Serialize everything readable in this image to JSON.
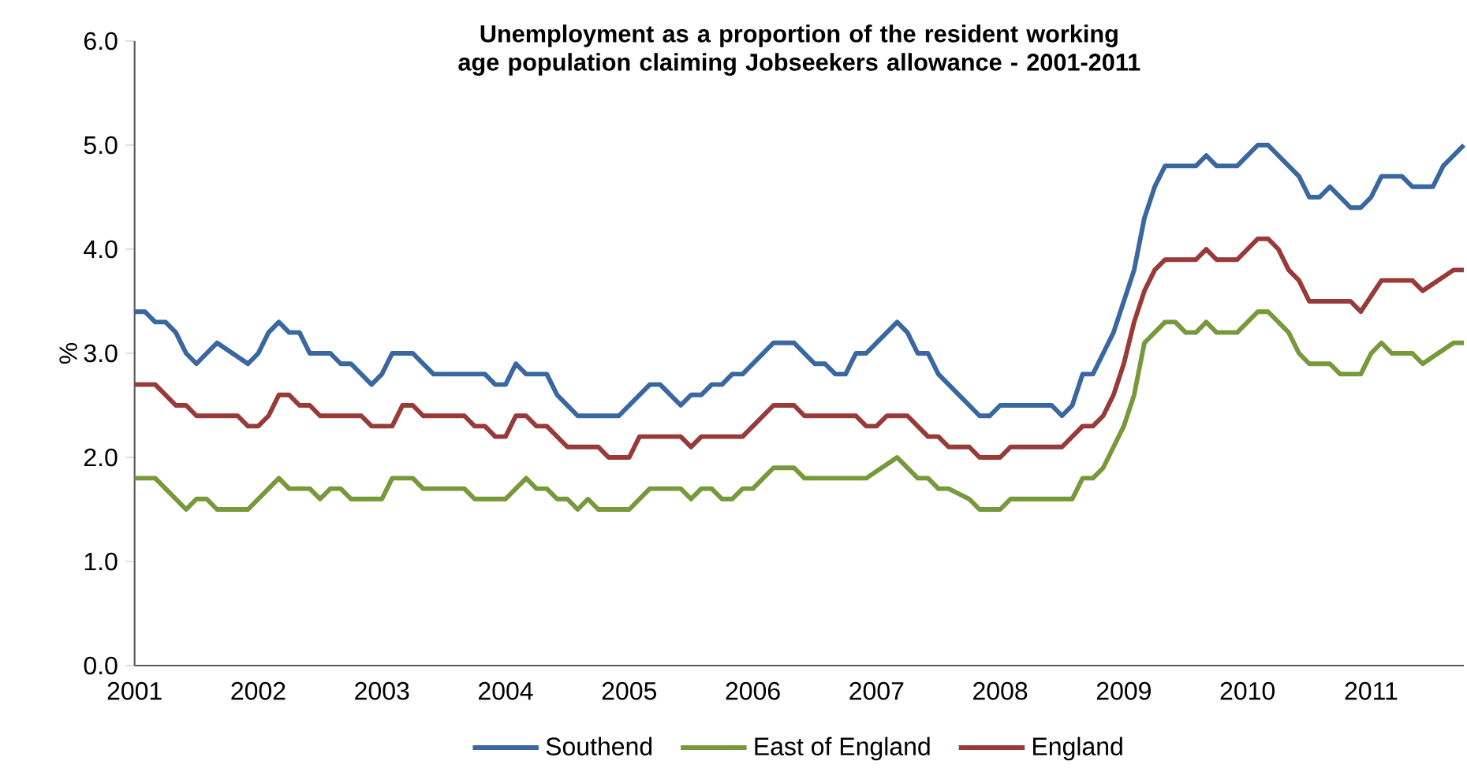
{
  "chart_data": {
    "type": "line",
    "title": "Unemployment as a proportion of the resident working age population claiming   Jobseekers allowance - 2001-2011",
    "ylabel": "%",
    "xlim": [
      "2001-01",
      "2011-10"
    ],
    "ylim": [
      0,
      6
    ],
    "xticks": [
      "2001",
      "2002",
      "2003",
      "2004",
      "2005",
      "2006",
      "2007",
      "2008",
      "2009",
      "2010",
      "2011"
    ],
    "yticks": [
      {
        "value": 0,
        "label": "0.0"
      },
      {
        "value": 1,
        "label": "1.0"
      },
      {
        "value": 2,
        "label": "2.0"
      },
      {
        "value": 3,
        "label": "3.0"
      },
      {
        "value": 4,
        "label": "4.0"
      },
      {
        "value": 5,
        "label": "5.0"
      },
      {
        "value": 6,
        "label": "6.0"
      }
    ],
    "legend": "bottom",
    "marker": "none",
    "line_style": "solid",
    "series": [
      {
        "name": "Southend",
        "color": "#3a67a0",
        "x": [
          "2001-01",
          "2001-02",
          "2001-03",
          "2001-04",
          "2001-05",
          "2001-06",
          "2001-07",
          "2001-09",
          "2001-12",
          "2002-01",
          "2002-02",
          "2002-03",
          "2002-04",
          "2002-05",
          "2002-06",
          "2002-08",
          "2002-09",
          "2002-10",
          "2002-12",
          "2003-01",
          "2003-02",
          "2003-04",
          "2003-06",
          "2003-11",
          "2003-12",
          "2004-01",
          "2004-02",
          "2004-03",
          "2004-05",
          "2004-06",
          "2004-08",
          "2004-12",
          "2005-03",
          "2005-04",
          "2005-06",
          "2005-07",
          "2005-08",
          "2005-09",
          "2005-10",
          "2005-11",
          "2005-12",
          "2006-03",
          "2006-05",
          "2006-07",
          "2006-08",
          "2006-09",
          "2006-10",
          "2006-11",
          "2006-12",
          "2007-03",
          "2007-04",
          "2007-05",
          "2007-06",
          "2007-07",
          "2007-11",
          "2007-12",
          "2008-01",
          "2008-06",
          "2008-07",
          "2008-08",
          "2008-09",
          "2008-10",
          "2008-11",
          "2008-12",
          "2009-01",
          "2009-02",
          "2009-03",
          "2009-04",
          "2009-05",
          "2009-08",
          "2009-09",
          "2009-10",
          "2009-12",
          "2010-02",
          "2010-03",
          "2010-06",
          "2010-07",
          "2010-08",
          "2010-09",
          "2010-11",
          "2010-12",
          "2011-01",
          "2011-02",
          "2011-04",
          "2011-05",
          "2011-07",
          "2011-08",
          "2011-10"
        ],
        "values": [
          3.4,
          3.4,
          3.3,
          3.3,
          3.2,
          3.0,
          2.9,
          3.1,
          2.9,
          3.0,
          3.2,
          3.3,
          3.2,
          3.2,
          3.0,
          3.0,
          2.9,
          2.9,
          2.7,
          2.8,
          3.0,
          3.0,
          2.8,
          2.8,
          2.7,
          2.7,
          2.9,
          2.8,
          2.8,
          2.6,
          2.4,
          2.4,
          2.7,
          2.7,
          2.5,
          2.6,
          2.6,
          2.7,
          2.7,
          2.8,
          2.8,
          3.1,
          3.1,
          2.9,
          2.9,
          2.8,
          2.8,
          3.0,
          3.0,
          3.3,
          3.2,
          3.0,
          3.0,
          2.8,
          2.4,
          2.4,
          2.5,
          2.5,
          2.4,
          2.5,
          2.8,
          2.8,
          3.0,
          3.2,
          3.5,
          3.8,
          4.3,
          4.6,
          4.8,
          4.8,
          4.9,
          4.8,
          4.8,
          5.0,
          5.0,
          4.7,
          4.5,
          4.5,
          4.6,
          4.4,
          4.4,
          4.5,
          4.7,
          4.7,
          4.6,
          4.6,
          4.8,
          5.0
        ]
      },
      {
        "name": "East of England",
        "color": "#77993b",
        "x": [
          "2001-01",
          "2001-03",
          "2001-06",
          "2001-07",
          "2001-08",
          "2001-09",
          "2001-12",
          "2002-03",
          "2002-04",
          "2002-06",
          "2002-07",
          "2002-08",
          "2002-09",
          "2002-10",
          "2003-01",
          "2003-02",
          "2003-04",
          "2003-05",
          "2003-09",
          "2003-10",
          "2004-01",
          "2004-03",
          "2004-04",
          "2004-05",
          "2004-06",
          "2004-07",
          "2004-08",
          "2004-09",
          "2004-10",
          "2005-01",
          "2005-03",
          "2005-06",
          "2005-07",
          "2005-08",
          "2005-09",
          "2005-10",
          "2005-11",
          "2005-12",
          "2006-01",
          "2006-03",
          "2006-05",
          "2006-06",
          "2006-12",
          "2007-03",
          "2007-05",
          "2007-06",
          "2007-07",
          "2007-08",
          "2007-10",
          "2007-11",
          "2008-01",
          "2008-02",
          "2008-08",
          "2008-09",
          "2008-10",
          "2008-11",
          "2008-12",
          "2009-01",
          "2009-02",
          "2009-03",
          "2009-05",
          "2009-06",
          "2009-07",
          "2009-08",
          "2009-09",
          "2009-10",
          "2009-12",
          "2010-02",
          "2010-03",
          "2010-05",
          "2010-06",
          "2010-07",
          "2010-09",
          "2010-10",
          "2010-12",
          "2011-01",
          "2011-02",
          "2011-03",
          "2011-05",
          "2011-06",
          "2011-09",
          "2011-10"
        ],
        "values": [
          1.8,
          1.8,
          1.5,
          1.6,
          1.6,
          1.5,
          1.5,
          1.8,
          1.7,
          1.7,
          1.6,
          1.7,
          1.7,
          1.6,
          1.6,
          1.8,
          1.8,
          1.7,
          1.7,
          1.6,
          1.6,
          1.8,
          1.7,
          1.7,
          1.6,
          1.6,
          1.5,
          1.6,
          1.5,
          1.5,
          1.7,
          1.7,
          1.6,
          1.7,
          1.7,
          1.6,
          1.6,
          1.7,
          1.7,
          1.9,
          1.9,
          1.8,
          1.8,
          2.0,
          1.8,
          1.8,
          1.7,
          1.7,
          1.6,
          1.5,
          1.5,
          1.6,
          1.6,
          1.8,
          1.8,
          1.9,
          2.1,
          2.3,
          2.6,
          3.1,
          3.3,
          3.3,
          3.2,
          3.2,
          3.3,
          3.2,
          3.2,
          3.4,
          3.4,
          3.2,
          3.0,
          2.9,
          2.9,
          2.8,
          2.8,
          3.0,
          3.1,
          3.0,
          3.0,
          2.9,
          3.1,
          3.1
        ]
      },
      {
        "name": "England",
        "color": "#983a37",
        "x": [
          "2001-01",
          "2001-03",
          "2001-04",
          "2001-05",
          "2001-06",
          "2001-07",
          "2001-11",
          "2001-12",
          "2002-01",
          "2002-02",
          "2002-03",
          "2002-04",
          "2002-05",
          "2002-06",
          "2002-07",
          "2002-11",
          "2002-12",
          "2003-02",
          "2003-03",
          "2003-04",
          "2003-05",
          "2003-09",
          "2003-10",
          "2003-11",
          "2003-12",
          "2004-01",
          "2004-02",
          "2004-03",
          "2004-04",
          "2004-05",
          "2004-07",
          "2004-10",
          "2004-11",
          "2005-01",
          "2005-02",
          "2005-06",
          "2005-07",
          "2005-08",
          "2005-12",
          "2006-03",
          "2006-05",
          "2006-06",
          "2006-11",
          "2006-12",
          "2007-01",
          "2007-02",
          "2007-04",
          "2007-06",
          "2007-07",
          "2007-08",
          "2007-10",
          "2007-11",
          "2008-01",
          "2008-02",
          "2008-07",
          "2008-09",
          "2008-10",
          "2008-11",
          "2008-12",
          "2009-01",
          "2009-02",
          "2009-03",
          "2009-04",
          "2009-05",
          "2009-08",
          "2009-09",
          "2009-10",
          "2009-12",
          "2010-02",
          "2010-03",
          "2010-04",
          "2010-05",
          "2010-06",
          "2010-07",
          "2010-11",
          "2010-12",
          "2011-02",
          "2011-05",
          "2011-06",
          "2011-09",
          "2011-10"
        ],
        "values": [
          2.7,
          2.7,
          2.6,
          2.5,
          2.5,
          2.4,
          2.4,
          2.3,
          2.3,
          2.4,
          2.6,
          2.6,
          2.5,
          2.5,
          2.4,
          2.4,
          2.3,
          2.3,
          2.5,
          2.5,
          2.4,
          2.4,
          2.3,
          2.3,
          2.2,
          2.2,
          2.4,
          2.4,
          2.3,
          2.3,
          2.1,
          2.1,
          2.0,
          2.0,
          2.2,
          2.2,
          2.1,
          2.2,
          2.2,
          2.5,
          2.5,
          2.4,
          2.4,
          2.3,
          2.3,
          2.4,
          2.4,
          2.2,
          2.2,
          2.1,
          2.1,
          2.0,
          2.0,
          2.1,
          2.1,
          2.3,
          2.3,
          2.4,
          2.6,
          2.9,
          3.3,
          3.6,
          3.8,
          3.9,
          3.9,
          4.0,
          3.9,
          3.9,
          4.1,
          4.1,
          4.0,
          3.8,
          3.7,
          3.5,
          3.5,
          3.4,
          3.7,
          3.7,
          3.6,
          3.8,
          3.8
        ]
      }
    ]
  }
}
